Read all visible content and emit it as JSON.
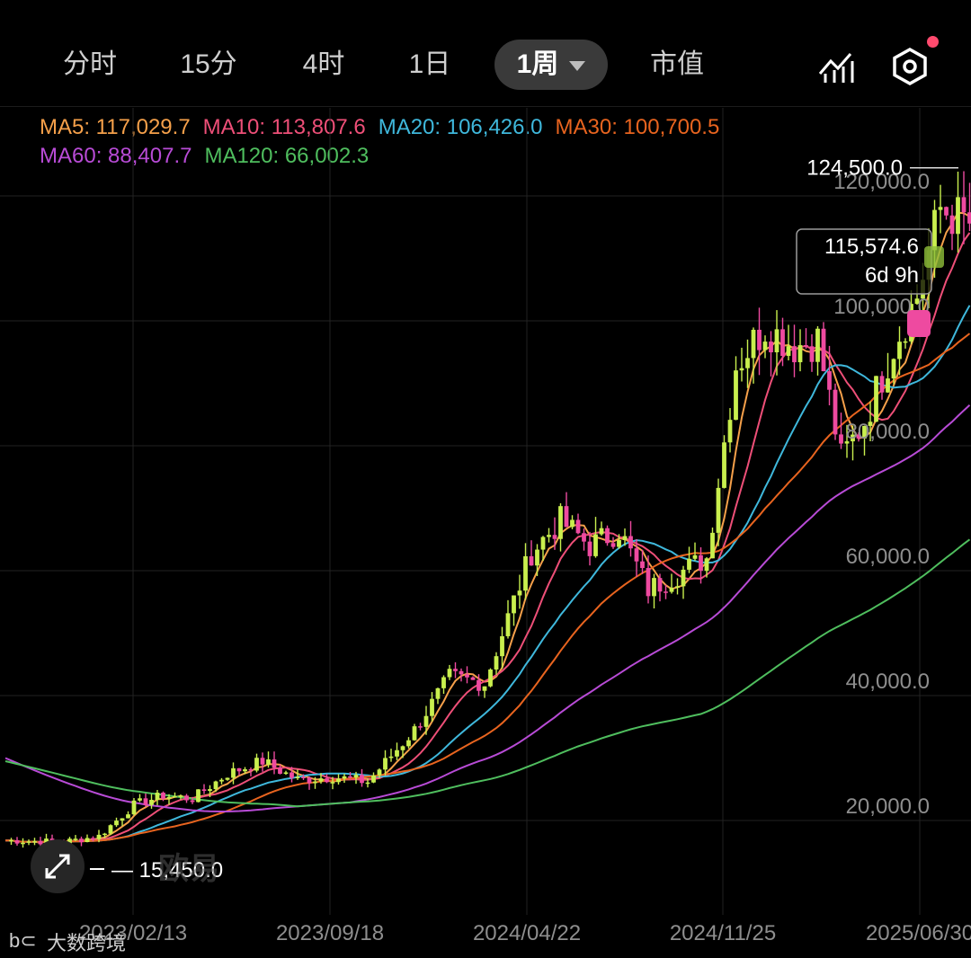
{
  "tabs": [
    {
      "label": "分时",
      "active": false
    },
    {
      "label": "15分",
      "active": false
    },
    {
      "label": "4时",
      "active": false
    },
    {
      "label": "1日",
      "active": false
    },
    {
      "label": "1周",
      "active": true
    },
    {
      "label": "市值",
      "active": false
    }
  ],
  "toolbar": {
    "indicator_icon": "chart-indicator-icon",
    "settings_icon": "hexagon-settings-icon",
    "badge_color": "#ff4a6e"
  },
  "ma_legend": [
    {
      "label": "MA5:",
      "value": "117,029.7",
      "color": "#f5a04a"
    },
    {
      "label": "MA10:",
      "value": "113,807.6",
      "color": "#ee4f78"
    },
    {
      "label": "MA20:",
      "value": "106,426.0",
      "color": "#3fb8dc"
    },
    {
      "label": "MA30:",
      "value": "100,700.5",
      "color": "#e8641f"
    },
    {
      "label": "MA60:",
      "value": "88,407.7",
      "color": "#b84bd6"
    },
    {
      "label": "MA120:",
      "value": "66,002.3",
      "color": "#4fbe5e"
    }
  ],
  "watermark": "欧易",
  "footer_text": "大数跨境",
  "price_tag": {
    "price": "115,574.6",
    "countdown": "6d 9h"
  },
  "colors": {
    "up": "#c9ef4e",
    "down": "#ee4aa0",
    "grid": "#222222",
    "axis_text": "#8e8e8e"
  },
  "chart_data": {
    "type": "candlestick",
    "y_ticks": [
      20000,
      40000,
      60000,
      80000,
      100000,
      120000
    ],
    "y_tick_labels": [
      "20,000.0",
      "40,000.0",
      "60,000.0",
      "80,000.0",
      "100,000.0",
      "120,000.0"
    ],
    "x_tick_labels": [
      "2023/02/13",
      "2023/09/18",
      "2024/04/22",
      "2024/11/25",
      "2025/06/30"
    ],
    "ylim": [
      0,
      140000
    ],
    "high_label": "124,500.0",
    "low_label": "15,450.0",
    "ohlc_samples": [
      {
        "x": "2022/12",
        "open": 16800,
        "high": 17300,
        "low": 16500,
        "close": 16900
      },
      {
        "x": "2023/02/13",
        "open": 21800,
        "high": 25000,
        "low": 21300,
        "close": 24500
      },
      {
        "x": "2023/09/18",
        "open": 26500,
        "high": 27300,
        "low": 26000,
        "close": 26700
      },
      {
        "x": "2024/03",
        "open": 63000,
        "high": 73500,
        "low": 61000,
        "close": 67000
      },
      {
        "x": "2024/04/22",
        "open": 64500,
        "high": 67000,
        "low": 60000,
        "close": 63000
      },
      {
        "x": "2024/11/25",
        "open": 92000,
        "high": 99000,
        "low": 90000,
        "close": 96000
      },
      {
        "x": "2025/04",
        "open": 82000,
        "high": 88000,
        "low": 74500,
        "close": 84000
      },
      {
        "x": "2025/06/30",
        "open": 118000,
        "high": 124500,
        "low": 113000,
        "close": 115574.6
      }
    ],
    "series": [
      {
        "name": "MA5",
        "values": [
          17000,
          22000,
          26500,
          66000,
          63000,
          95000,
          84000,
          117029.7
        ]
      },
      {
        "name": "MA10",
        "values": [
          17500,
          21000,
          26700,
          58000,
          64500,
          90000,
          85000,
          113807.6
        ]
      },
      {
        "name": "MA20",
        "values": [
          18500,
          19500,
          26500,
          50000,
          64000,
          80000,
          92000,
          106426.0
        ]
      },
      {
        "name": "MA30",
        "values": [
          20000,
          18500,
          26800,
          44000,
          60000,
          75000,
          88000,
          100700.5
        ]
      },
      {
        "name": "MA60",
        "values": [
          28000,
          20000,
          24000,
          34000,
          52000,
          68000,
          80000,
          88407.7
        ]
      },
      {
        "name": "MA120",
        "values": [
          30000,
          31500,
          27500,
          30000,
          36000,
          50000,
          59000,
          66002.3
        ]
      }
    ]
  }
}
